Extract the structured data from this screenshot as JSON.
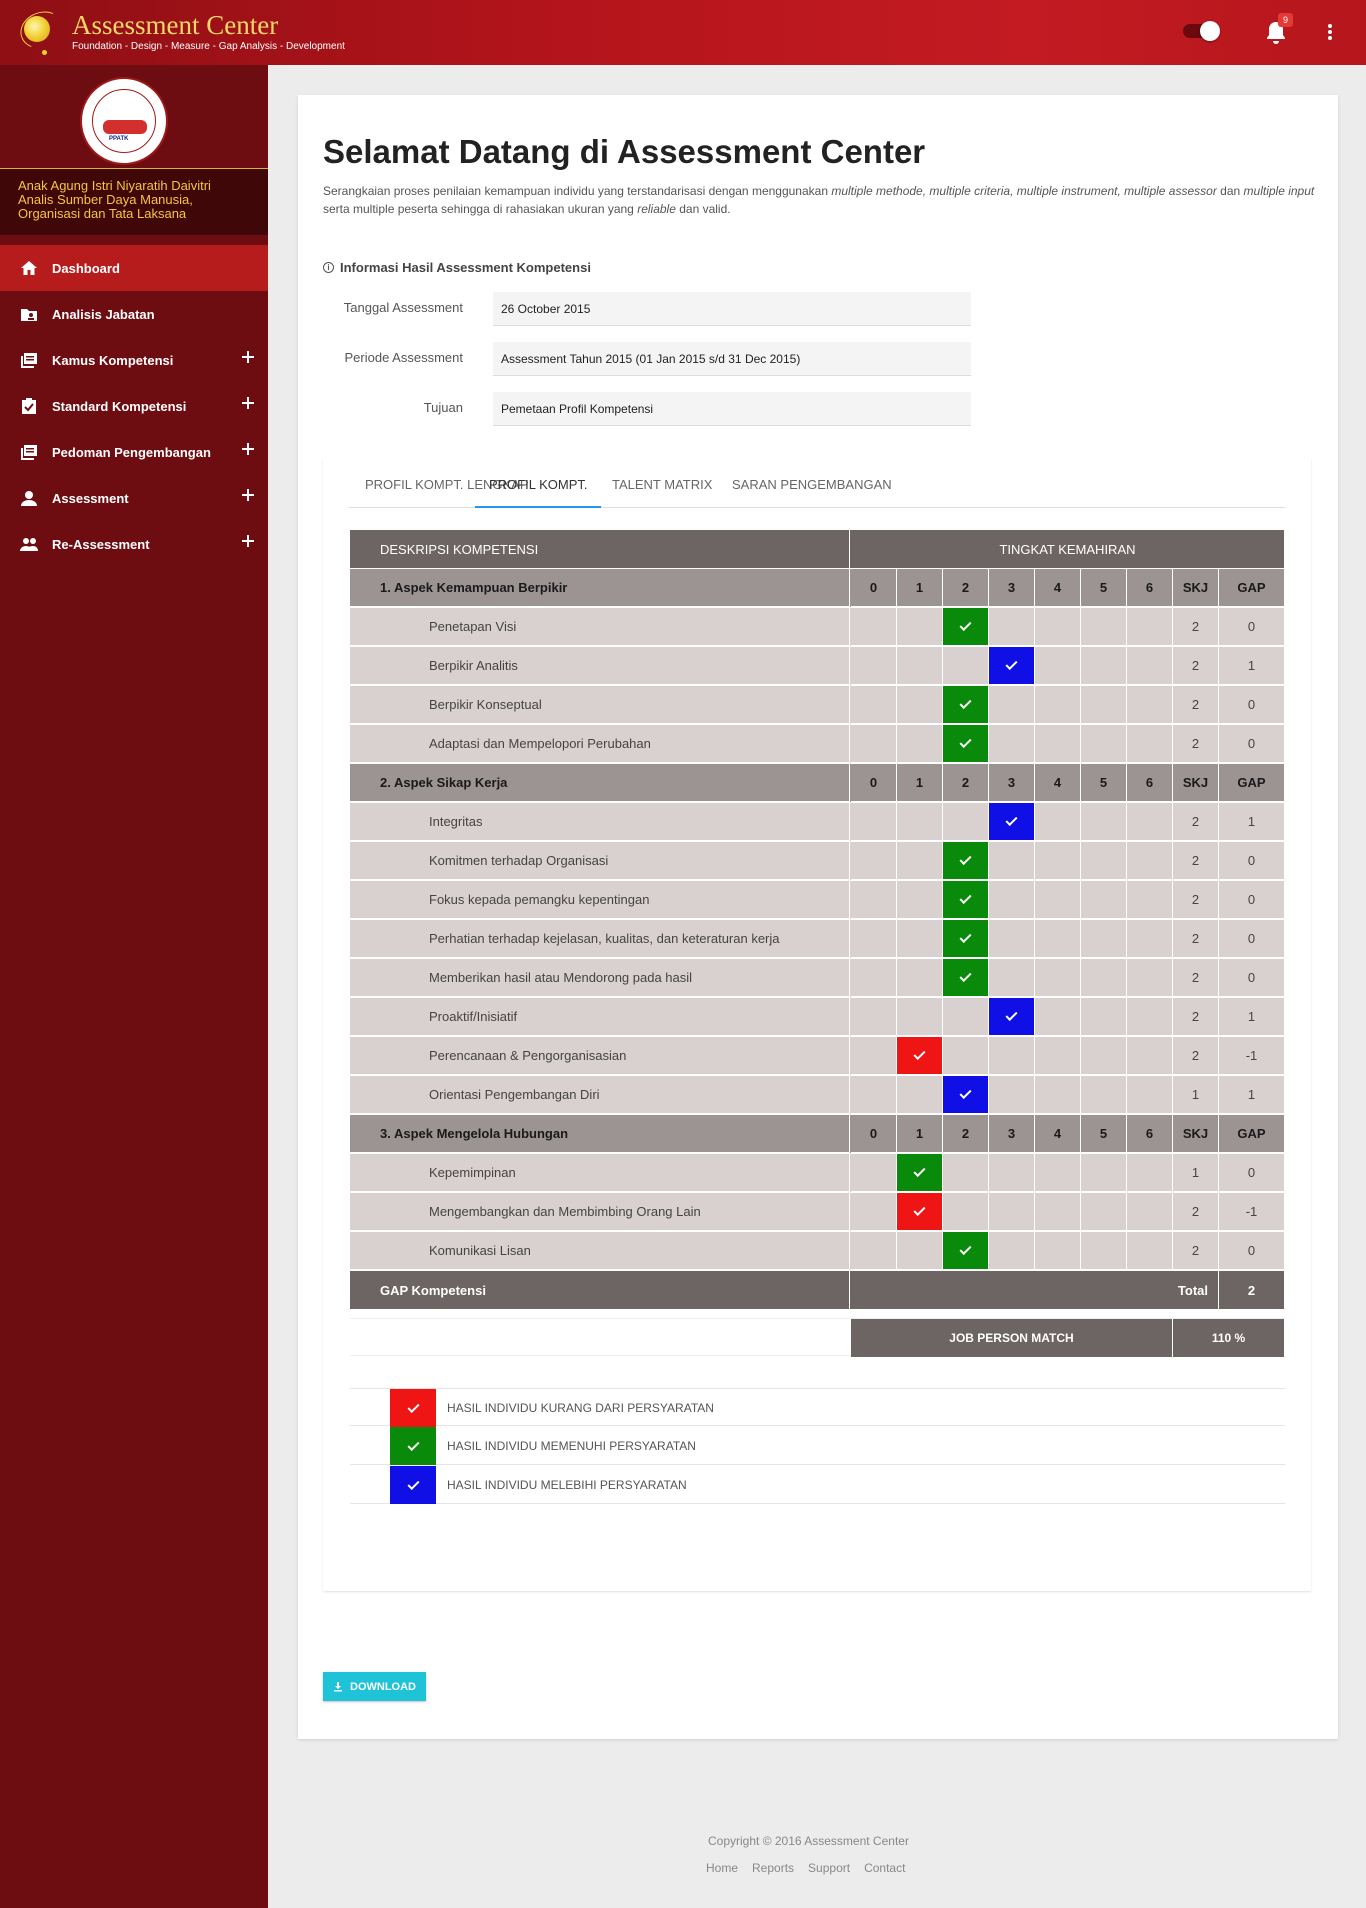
{
  "header": {
    "app_title": "Assessment Center",
    "app_subtitle": "Foundation - Design - Measure - Gap Analysis - Development",
    "notification_count": "9"
  },
  "sidebar": {
    "user_name": "Anak Agung Istri Niyaratih Daivitri",
    "user_role": "Analis Sumber Daya Manusia, Organisasi dan Tata Laksana",
    "seal_text": "PPATK",
    "items": [
      {
        "label": "Dashboard",
        "icon": "home-icon",
        "expandable": false,
        "active": true
      },
      {
        "label": "Analisis Jabatan",
        "icon": "folder-user-icon",
        "expandable": false,
        "active": false
      },
      {
        "label": "Kamus Kompetensi",
        "icon": "library-icon",
        "expandable": true,
        "active": false
      },
      {
        "label": "Standard Kompetensi",
        "icon": "clipboard-check-icon",
        "expandable": true,
        "active": false
      },
      {
        "label": "Pedoman Pengembangan",
        "icon": "library-icon",
        "expandable": true,
        "active": false
      },
      {
        "label": "Assessment",
        "icon": "person-icon",
        "expandable": true,
        "active": false
      },
      {
        "label": "Re-Assessment",
        "icon": "people-icon",
        "expandable": true,
        "active": false
      }
    ]
  },
  "main": {
    "title": "Selamat Datang di Assessment Center",
    "description_parts": [
      {
        "text": "Serangkaian proses penilaian kemampuan individu yang terstandarisasi dengan menggunakan ",
        "italic": false
      },
      {
        "text": "multiple methode, multiple criteria, multiple instrument, multiple assessor",
        "italic": true
      },
      {
        "text": " dan ",
        "italic": false
      },
      {
        "text": "multiple input",
        "italic": true
      },
      {
        "text": " serta multiple peserta sehingga di rahasiakan ukuran yang ",
        "italic": false
      },
      {
        "text": "reliable",
        "italic": true
      },
      {
        "text": " dan valid.",
        "italic": false
      }
    ],
    "info_title": "Informasi Hasil Assessment Kompetensi",
    "fields": [
      {
        "label": "Tanggal Assessment",
        "value": "26 October 2015"
      },
      {
        "label": "Periode Assessment",
        "value": "Assessment Tahun 2015 (01 Jan 2015 s/d 31 Dec 2015)"
      },
      {
        "label": "Tujuan",
        "value": "Pemetaan Profil Kompetensi"
      }
    ],
    "tabs": [
      {
        "label": "PROFIL KOMPT. LENGKAP",
        "active": false
      },
      {
        "label": "PROFIL KOMPT.",
        "active": true
      },
      {
        "label": "TALENT MATRIX",
        "active": false
      },
      {
        "label": "SARAN PENGEMBANGAN",
        "active": false
      }
    ]
  },
  "table": {
    "col_desc": "DESKRIPSI KOMPETENSI",
    "col_level": "TINGKAT KEMAHIRAN",
    "levels": [
      "0",
      "1",
      "2",
      "3",
      "4",
      "5",
      "6"
    ],
    "col_skj": "SKJ",
    "col_gap": "GAP",
    "sections": [
      {
        "title": "1. Aspek Kemampuan Berpikir",
        "items": [
          {
            "name": "Penetapan Visi",
            "level": 2,
            "status": "green",
            "skj": "2",
            "gap": "0"
          },
          {
            "name": "Berpikir Analitis",
            "level": 3,
            "status": "blue",
            "skj": "2",
            "gap": "1"
          },
          {
            "name": "Berpikir Konseptual",
            "level": 2,
            "status": "green",
            "skj": "2",
            "gap": "0"
          },
          {
            "name": "Adaptasi dan Mempelopori Perubahan",
            "level": 2,
            "status": "green",
            "skj": "2",
            "gap": "0"
          }
        ]
      },
      {
        "title": "2. Aspek Sikap Kerja",
        "items": [
          {
            "name": "Integritas",
            "level": 3,
            "status": "blue",
            "skj": "2",
            "gap": "1"
          },
          {
            "name": "Komitmen terhadap Organisasi",
            "level": 2,
            "status": "green",
            "skj": "2",
            "gap": "0"
          },
          {
            "name": "Fokus kepada pemangku kepentingan",
            "level": 2,
            "status": "green",
            "skj": "2",
            "gap": "0"
          },
          {
            "name": "Perhatian terhadap kejelasan, kualitas, dan keteraturan kerja",
            "level": 2,
            "status": "green",
            "skj": "2",
            "gap": "0"
          },
          {
            "name": "Memberikan hasil atau Mendorong pada hasil",
            "level": 2,
            "status": "green",
            "skj": "2",
            "gap": "0"
          },
          {
            "name": "Proaktif/Inisiatif",
            "level": 3,
            "status": "blue",
            "skj": "2",
            "gap": "1"
          },
          {
            "name": "Perencanaan & Pengorganisasian",
            "level": 1,
            "status": "red",
            "skj": "2",
            "gap": "-1"
          },
          {
            "name": "Orientasi Pengembangan Diri",
            "level": 2,
            "status": "blue",
            "skj": "1",
            "gap": "1"
          }
        ]
      },
      {
        "title": "3. Aspek Mengelola Hubungan",
        "items": [
          {
            "name": "Kepemimpinan",
            "level": 1,
            "status": "green",
            "skj": "1",
            "gap": "0"
          },
          {
            "name": "Mengembangkan dan Membimbing Orang Lain",
            "level": 1,
            "status": "red",
            "skj": "2",
            "gap": "-1"
          },
          {
            "name": "Komunikasi Lisan",
            "level": 2,
            "status": "green",
            "skj": "2",
            "gap": "0"
          }
        ]
      }
    ],
    "footer_label": "GAP Kompetensi",
    "total_label": "Total",
    "total_value": "2",
    "match_label": "JOB PERSON MATCH",
    "match_value": "110 %"
  },
  "legend": [
    {
      "status": "red",
      "label": "HASIL INDIVIDU KURANG DARI PERSYARATAN"
    },
    {
      "status": "green",
      "label": "HASIL INDIVIDU MEMENUHI PERSYARATAN"
    },
    {
      "status": "blue",
      "label": "HASIL INDIVIDU MELEBIHI PERSYARATAN"
    }
  ],
  "download_label": "DOWNLOAD",
  "footer": {
    "copyright": "Copyright © 2016 Assessment Center",
    "links": [
      "Home",
      "Reports",
      "Support",
      "Contact"
    ]
  },
  "colors": {
    "green": "#0a8a0a",
    "blue": "#1010e6",
    "red": "#f01515",
    "accent": "#b71c1c"
  }
}
